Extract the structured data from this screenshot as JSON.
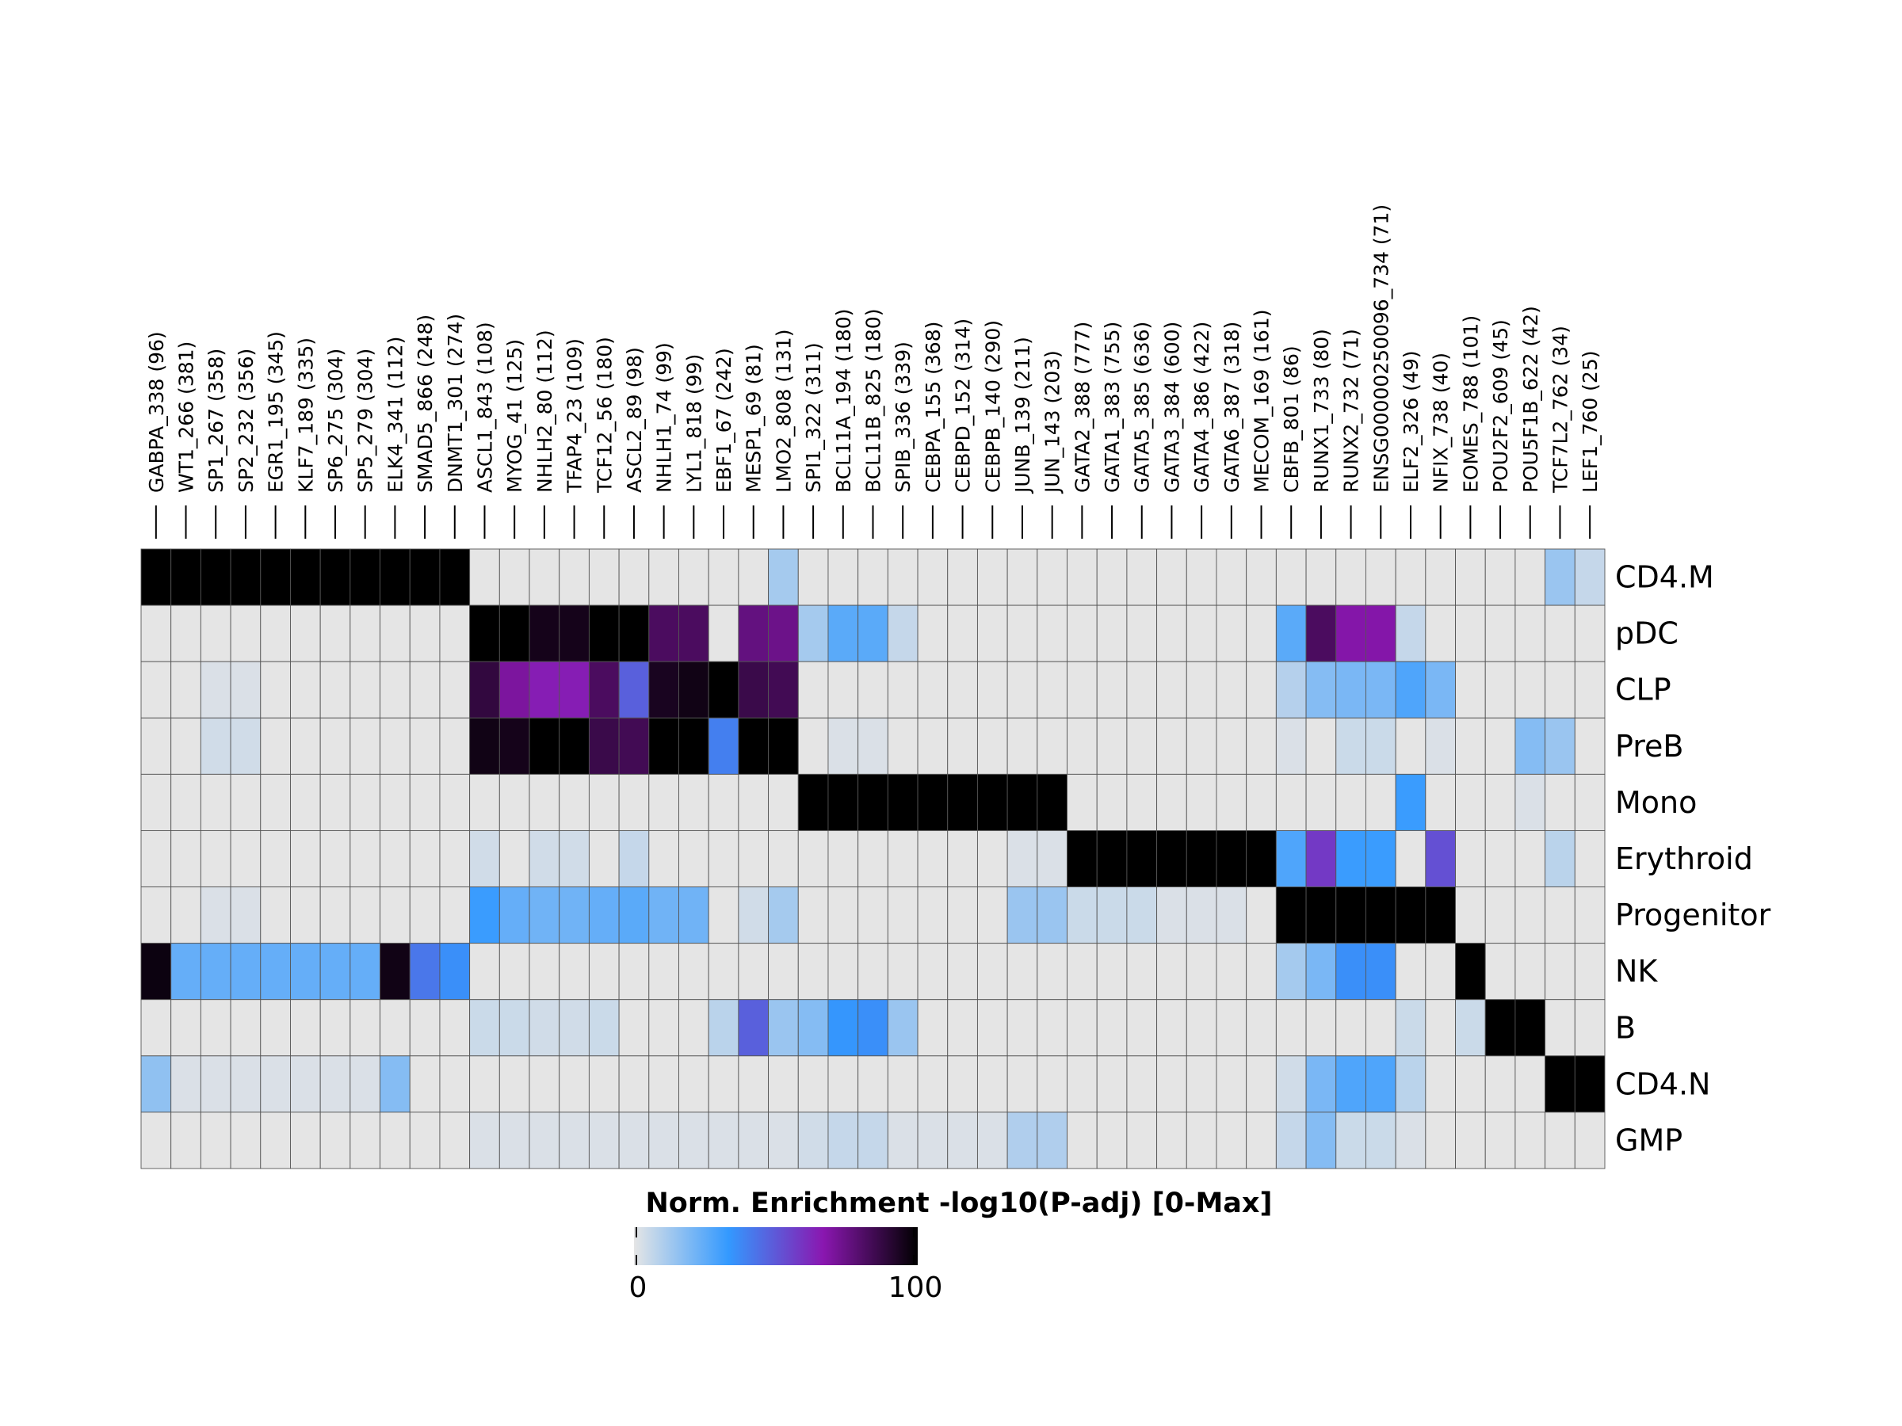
{
  "chart_data": {
    "type": "heatmap",
    "columns": [
      "GABPA_338 (96)",
      "WT1_266 (381)",
      "SP1_267 (358)",
      "SP2_232 (356)",
      "EGR1_195 (345)",
      "KLF7_189 (335)",
      "SP6_275 (304)",
      "SP5_279 (304)",
      "ELK4_341 (112)",
      "SMAD5_866 (248)",
      "DNMT1_301 (274)",
      "ASCL1_843 (108)",
      "MYOG_41 (125)",
      "NHLH2_80 (112)",
      "TFAP4_23 (109)",
      "TCF12_56 (180)",
      "ASCL2_89 (98)",
      "NHLH1_74 (99)",
      "LYL1_818 (99)",
      "EBF1_67 (242)",
      "MESP1_69 (81)",
      "LMO2_808 (131)",
      "SPI1_322 (311)",
      "BCL11A_194 (180)",
      "BCL11B_825 (180)",
      "SPIB_336 (339)",
      "CEBPA_155 (368)",
      "CEBPD_152 (314)",
      "CEBPB_140 (290)",
      "JUNB_139 (211)",
      "JUN_143 (203)",
      "GATA2_388 (777)",
      "GATA1_383 (755)",
      "GATA5_385 (636)",
      "GATA3_384 (600)",
      "GATA4_386 (422)",
      "GATA6_387 (318)",
      "MECOM_169 (161)",
      "CBFB_801 (86)",
      "RUNX1_733 (80)",
      "RUNX2_732 (71)",
      "ENSG00000250096_734 (71)",
      "ELF2_326 (49)",
      "NFIX_738 (40)",
      "EOMES_788 (101)",
      "POU2F2_609 (45)",
      "POU5F1B_622 (42)",
      "TCF7L2_762 (34)",
      "LEF1_760 (25)"
    ],
    "rows": [
      "CD4.M",
      "pDC",
      "CLP",
      "PreB",
      "Mono",
      "Erythroid",
      "Progenitor",
      "NK",
      "B",
      "CD4.N",
      "GMP"
    ],
    "values": [
      [
        100,
        100,
        100,
        100,
        100,
        100,
        100,
        100,
        100,
        100,
        100,
        0,
        0,
        0,
        0,
        0,
        0,
        0,
        0,
        0,
        0,
        12,
        0,
        0,
        0,
        0,
        0,
        0,
        0,
        0,
        0,
        0,
        0,
        0,
        0,
        0,
        0,
        0,
        0,
        0,
        0,
        0,
        0,
        0,
        0,
        0,
        0,
        14,
        6
      ],
      [
        0,
        0,
        0,
        0,
        0,
        0,
        0,
        0,
        0,
        0,
        0,
        100,
        100,
        95,
        95,
        100,
        100,
        82,
        82,
        0,
        76,
        74,
        12,
        26,
        26,
        6,
        0,
        0,
        0,
        0,
        0,
        0,
        0,
        0,
        0,
        0,
        0,
        0,
        26,
        82,
        68,
        68,
        6,
        0,
        0,
        0,
        0,
        0,
        0
      ],
      [
        0,
        0,
        2,
        2,
        0,
        0,
        0,
        0,
        0,
        0,
        0,
        88,
        70,
        65,
        65,
        82,
        48,
        94,
        96,
        100,
        86,
        84,
        0,
        0,
        0,
        0,
        0,
        0,
        0,
        0,
        0,
        0,
        0,
        0,
        0,
        0,
        0,
        0,
        9,
        18,
        20,
        20,
        28,
        20,
        0,
        0,
        0,
        0,
        0
      ],
      [
        0,
        0,
        4,
        4,
        0,
        0,
        0,
        0,
        0,
        0,
        0,
        96,
        95,
        100,
        100,
        86,
        84,
        100,
        100,
        40,
        100,
        100,
        0,
        2,
        2,
        0,
        0,
        0,
        0,
        0,
        0,
        0,
        0,
        0,
        0,
        0,
        0,
        0,
        2,
        0,
        5,
        5,
        0,
        2,
        0,
        0,
        18,
        14,
        0
      ],
      [
        0,
        0,
        0,
        0,
        0,
        0,
        0,
        0,
        0,
        0,
        0,
        0,
        0,
        0,
        0,
        0,
        0,
        0,
        0,
        0,
        0,
        0,
        100,
        100,
        100,
        100,
        100,
        100,
        100,
        100,
        100,
        0,
        0,
        0,
        0,
        0,
        0,
        0,
        0,
        0,
        0,
        0,
        32,
        0,
        0,
        0,
        2,
        0,
        0
      ],
      [
        0,
        0,
        0,
        0,
        0,
        0,
        0,
        0,
        0,
        0,
        0,
        4,
        0,
        4,
        4,
        0,
        6,
        0,
        0,
        0,
        0,
        0,
        0,
        0,
        0,
        0,
        0,
        0,
        0,
        2,
        2,
        100,
        100,
        100,
        100,
        100,
        100,
        100,
        28,
        58,
        32,
        32,
        0,
        52,
        0,
        0,
        0,
        8,
        0
      ],
      [
        0,
        0,
        2,
        2,
        0,
        0,
        0,
        0,
        0,
        0,
        0,
        32,
        24,
        22,
        22,
        24,
        26,
        22,
        22,
        0,
        4,
        12,
        0,
        0,
        0,
        0,
        0,
        0,
        0,
        14,
        14,
        5,
        5,
        5,
        2,
        2,
        2,
        0,
        100,
        100,
        100,
        100,
        100,
        100,
        0,
        0,
        0,
        0,
        0
      ],
      [
        97,
        24,
        24,
        24,
        24,
        24,
        24,
        24,
        96,
        42,
        36,
        0,
        0,
        0,
        0,
        0,
        0,
        0,
        0,
        0,
        0,
        0,
        0,
        0,
        0,
        0,
        0,
        0,
        0,
        0,
        0,
        0,
        0,
        0,
        0,
        0,
        0,
        0,
        12,
        20,
        36,
        36,
        0,
        0,
        100,
        0,
        0,
        0,
        0
      ],
      [
        0,
        0,
        0,
        0,
        0,
        0,
        0,
        0,
        0,
        0,
        0,
        5,
        5,
        4,
        4,
        5,
        0,
        0,
        0,
        8,
        48,
        14,
        18,
        34,
        36,
        14,
        0,
        0,
        0,
        0,
        0,
        0,
        0,
        0,
        0,
        0,
        0,
        0,
        0,
        0,
        0,
        0,
        5,
        0,
        5,
        100,
        100,
        0,
        0
      ],
      [
        16,
        2,
        2,
        2,
        2,
        2,
        2,
        2,
        18,
        0,
        0,
        0,
        0,
        0,
        0,
        0,
        0,
        0,
        0,
        0,
        0,
        0,
        0,
        0,
        0,
        0,
        0,
        0,
        0,
        0,
        0,
        0,
        0,
        0,
        0,
        0,
        0,
        0,
        4,
        20,
        28,
        28,
        8,
        0,
        0,
        0,
        0,
        100,
        100
      ],
      [
        0,
        0,
        0,
        0,
        0,
        0,
        0,
        0,
        0,
        0,
        0,
        2,
        2,
        2,
        2,
        2,
        2,
        2,
        2,
        2,
        2,
        2,
        4,
        6,
        6,
        2,
        2,
        2,
        2,
        10,
        10,
        0,
        0,
        0,
        0,
        0,
        0,
        0,
        6,
        18,
        5,
        5,
        2,
        0,
        0,
        0,
        0,
        0,
        0
      ]
    ],
    "colorbar": {
      "title": "Norm. Enrichment -log10(P-adj) [0-Max]",
      "min_label": "0",
      "max_label": "100",
      "min": 0,
      "max": 100,
      "colors": [
        "#e5e5e5",
        "#3399ff",
        "#8a17b0",
        "#000000"
      ]
    }
  }
}
